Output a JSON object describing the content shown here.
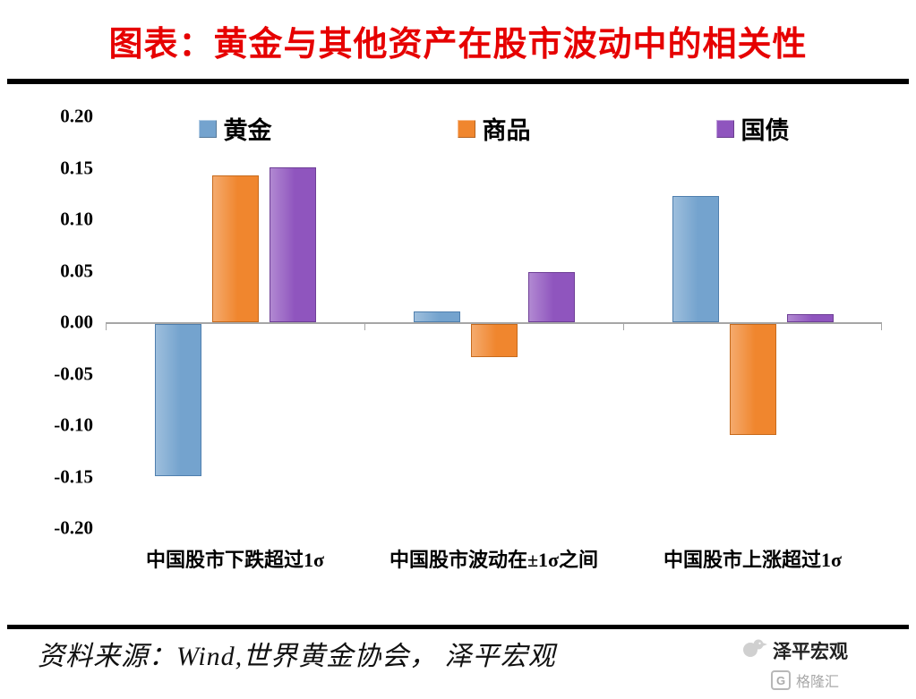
{
  "title": "图表：黄金与其他资产在股市波动中的相关性",
  "source_text": "资料来源：Wind,世界黄金协会， 泽平宏观",
  "watermark": {
    "brand": "泽平宏观",
    "logo2": "格隆汇",
    "logo2_letter": "G"
  },
  "colors": {
    "title": "#e60000",
    "axis_line": "#a6a6a6",
    "divider": "#000000"
  },
  "chart_data": {
    "type": "bar",
    "title": "黄金与其他资产在股市波动中的相关性",
    "xlabel": "",
    "ylabel": "",
    "categories": [
      "中国股市下跌超过1σ",
      "中国股市波动在±1σ之间",
      "中国股市上涨超过1σ"
    ],
    "series": [
      {
        "name": "黄金",
        "color": "#74a3ce",
        "edge": "#4f7fae",
        "values": [
          -0.148,
          0.01,
          0.123
        ]
      },
      {
        "name": "商品",
        "color": "#f0862e",
        "edge": "#c76a1c",
        "values": [
          0.143,
          -0.032,
          -0.108
        ]
      },
      {
        "name": "国债",
        "color": "#8f55be",
        "edge": "#6e3f96",
        "values": [
          0.15,
          0.049,
          0.008
        ]
      }
    ],
    "ylim": [
      -0.2,
      0.2
    ],
    "ytick_step": 0.05,
    "ytick_labels": [
      "0.20",
      "0.15",
      "0.10",
      "0.05",
      "0.00",
      "-0.05",
      "-0.10",
      "-0.15",
      "-0.20"
    ],
    "grid": false,
    "legend_position": "top"
  }
}
